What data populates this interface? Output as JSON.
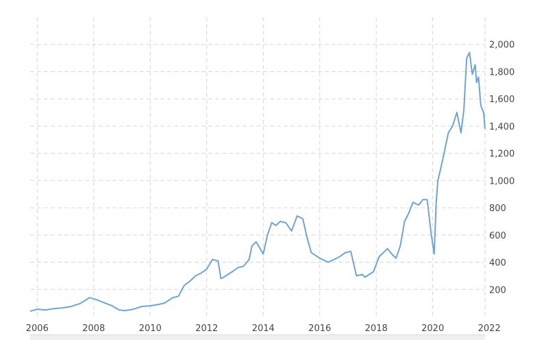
{
  "chart_data": {
    "type": "line",
    "title": "",
    "xlabel": "",
    "ylabel": "",
    "xlim": [
      2005.75,
      2021.85
    ],
    "ylim": [
      0,
      2200
    ],
    "x_ticks": [
      2006,
      2008,
      2010,
      2012,
      2014,
      2016,
      2018,
      2020,
      2022
    ],
    "x_tick_labels": [
      "2006",
      "2008",
      "2010",
      "2012",
      "2014",
      "2016",
      "2018",
      "2020",
      "2022"
    ],
    "y_ticks": [
      200,
      400,
      600,
      800,
      1000,
      1200,
      1400,
      1600,
      1800,
      2000
    ],
    "y_tick_labels": [
      "200",
      "400",
      "600",
      "800",
      "1,000",
      "1,200",
      "1,400",
      "1,600",
      "1,800",
      "2,000"
    ],
    "grid": true,
    "y_axis_position": "right",
    "series": [
      {
        "color": "#6fa3d6",
        "x": [
          2005.75,
          2006.0,
          2006.3,
          2006.6,
          2006.9,
          2007.2,
          2007.5,
          2007.7,
          2007.85,
          2008.1,
          2008.4,
          2008.65,
          2008.9,
          2009.1,
          2009.4,
          2009.7,
          2010.0,
          2010.3,
          2010.5,
          2010.65,
          2010.8,
          2011.0,
          2011.2,
          2011.4,
          2011.6,
          2011.8,
          2012.0,
          2012.2,
          2012.4,
          2012.5,
          2012.6,
          2012.75,
          2012.9,
          2013.1,
          2013.3,
          2013.5,
          2013.6,
          2013.75,
          2014.0,
          2014.15,
          2014.3,
          2014.45,
          2014.6,
          2014.8,
          2015.0,
          2015.2,
          2015.4,
          2015.55,
          2015.7,
          2015.85,
          2016.0,
          2016.1,
          2016.3,
          2016.5,
          2016.7,
          2016.9,
          2017.1,
          2017.3,
          2017.5,
          2017.6,
          2017.75,
          2017.9,
          2018.1,
          2018.25,
          2018.4,
          2018.55,
          2018.7,
          2018.85,
          2019.0,
          2019.15,
          2019.3,
          2019.5,
          2019.65,
          2019.8,
          2019.95,
          2020.05,
          2020.12,
          2020.18,
          2020.25,
          2020.4,
          2020.55,
          2020.7,
          2020.85,
          2021.0,
          2021.1,
          2021.2,
          2021.3,
          2021.4,
          2021.5,
          2021.55,
          2021.62,
          2021.7,
          2021.8,
          2021.85
        ],
        "y": [
          40,
          55,
          50,
          60,
          65,
          75,
          95,
          120,
          140,
          125,
          100,
          80,
          50,
          45,
          55,
          75,
          80,
          90,
          100,
          120,
          140,
          150,
          230,
          260,
          300,
          320,
          350,
          420,
          410,
          280,
          290,
          310,
          330,
          360,
          370,
          420,
          520,
          550,
          460,
          600,
          690,
          670,
          700,
          690,
          630,
          740,
          720,
          580,
          470,
          450,
          430,
          420,
          400,
          420,
          440,
          470,
          480,
          300,
          310,
          290,
          310,
          330,
          440,
          470,
          500,
          460,
          430,
          520,
          700,
          760,
          840,
          820,
          860,
          860,
          600,
          460,
          840,
          1000,
          1060,
          1200,
          1350,
          1400,
          1500,
          1350,
          1520,
          1900,
          1940,
          1780,
          1850,
          1720,
          1760,
          1550,
          1500,
          1380
        ]
      }
    ]
  }
}
